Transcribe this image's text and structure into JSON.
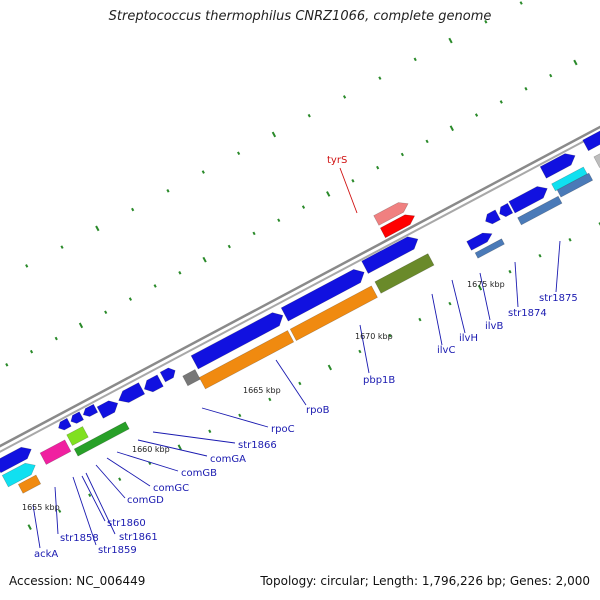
{
  "title": "Streptococcus thermophilus CNRZ1066, complete genome",
  "accession_label": "Accession: NC_006449",
  "summary_label": "Topology: circular; Length: 1,796,226 bp; Genes: 2,000",
  "colors": {
    "backbone": "#8a8a8a",
    "gene_blue": "#1111e0",
    "orange": "#f08a10",
    "olive": "#6a8a2a",
    "light_green": "#80e020",
    "green": "#28a028",
    "cyan": "#10e0f0",
    "magenta": "#f020a0",
    "light_red": "#f08080",
    "red": "#ff0000",
    "gray": "#bdbdbd",
    "dark_gray": "#777777",
    "steel_blue": "#4a7ab8",
    "mint": "#20e0a0",
    "tick": "#2a8a2a",
    "label_blue": "#1a1ab0",
    "label_red": "#d01010"
  },
  "scale_labels": [
    {
      "text": "1655 kbp"
    },
    {
      "text": "1660 kbp"
    },
    {
      "text": "1665 kbp"
    },
    {
      "text": "1670 kbp"
    },
    {
      "text": "1675 kbp"
    }
  ],
  "gene_labels": [
    {
      "text": "tyrS",
      "color": "red"
    },
    {
      "text": "ackA",
      "color": "blue"
    },
    {
      "text": "str1858",
      "color": "blue"
    },
    {
      "text": "str1859",
      "color": "blue"
    },
    {
      "text": "str1860",
      "color": "blue"
    },
    {
      "text": "str1861",
      "color": "blue"
    },
    {
      "text": "comGD",
      "color": "blue"
    },
    {
      "text": "comGC",
      "color": "blue"
    },
    {
      "text": "comGB",
      "color": "blue"
    },
    {
      "text": "comGA",
      "color": "blue"
    },
    {
      "text": "str1866",
      "color": "blue"
    },
    {
      "text": "rpoC",
      "color": "blue"
    },
    {
      "text": "rpoB",
      "color": "blue"
    },
    {
      "text": "pbp1B",
      "color": "blue"
    },
    {
      "text": "ilvC",
      "color": "blue"
    },
    {
      "text": "ilvH",
      "color": "blue"
    },
    {
      "text": "ilvB",
      "color": "blue"
    },
    {
      "text": "str1874",
      "color": "blue"
    },
    {
      "text": "str1875",
      "color": "blue"
    }
  ]
}
